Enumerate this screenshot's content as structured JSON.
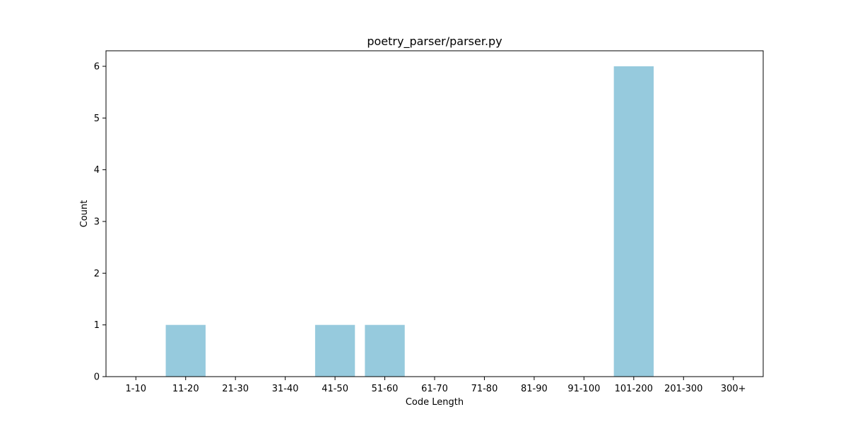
{
  "chart_data": {
    "type": "bar",
    "title": "poetry_parser/parser.py",
    "xlabel": "Code Length",
    "ylabel": "Count",
    "categories": [
      "1-10",
      "11-20",
      "21-30",
      "31-40",
      "41-50",
      "51-60",
      "61-70",
      "71-80",
      "81-90",
      "91-100",
      "101-200",
      "201-300",
      "300+"
    ],
    "values": [
      0,
      1,
      0,
      0,
      1,
      1,
      0,
      0,
      0,
      0,
      6,
      0,
      0
    ],
    "ylim": [
      0,
      6.3
    ],
    "yticks": [
      0,
      1,
      2,
      3,
      4,
      5,
      6
    ],
    "bar_color": "#96cadd",
    "grid": false,
    "legend": "none"
  }
}
